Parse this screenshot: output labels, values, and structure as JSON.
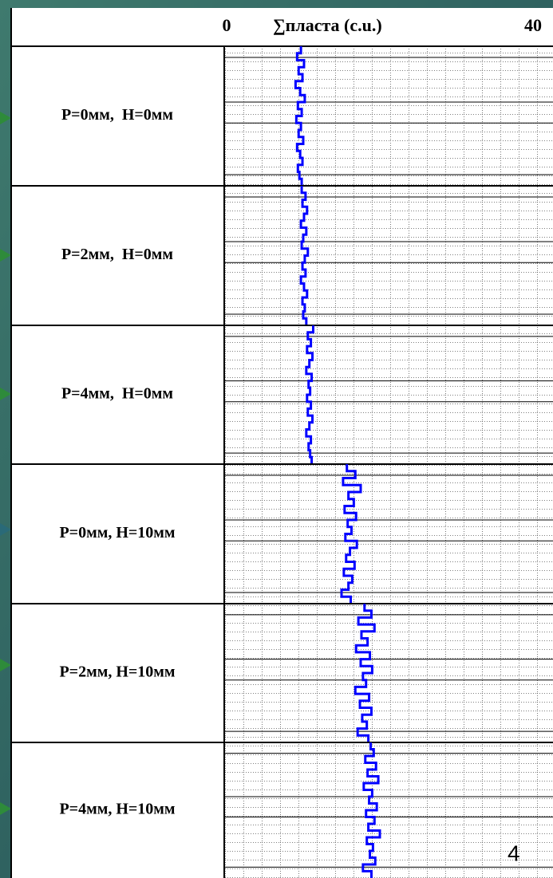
{
  "chart_data": {
    "type": "line",
    "orientation": "vertical",
    "xlabel": "∑пласта (c.u.)",
    "xlim": [
      0,
      40
    ],
    "xticks": [
      0,
      40
    ],
    "color": "#0000ff",
    "series": [
      {
        "name": "P=0мм,  H=0мм",
        "values": [
          9.7,
          9.2,
          10.1,
          9.4,
          9.9,
          9.0,
          9.6,
          10.2,
          9.3,
          9.8,
          9.1,
          9.7,
          9.4,
          10.0,
          9.2,
          9.6,
          9.9,
          9.3,
          9.5,
          9.8
        ]
      },
      {
        "name": "P=2мм,  H=0мм",
        "values": [
          9.8,
          10.3,
          9.9,
          10.5,
          10.1,
          9.7,
          10.4,
          10.0,
          9.8,
          10.6,
          10.2,
          9.9,
          10.3,
          9.7,
          10.1,
          10.5,
          9.9,
          10.2,
          10.0,
          10.4
        ]
      },
      {
        "name": "P=4мм,  H=0мм",
        "values": [
          11.3,
          10.6,
          11.0,
          10.5,
          11.2,
          10.8,
          10.4,
          11.1,
          10.7,
          10.9,
          10.5,
          11.0,
          10.6,
          11.2,
          10.8,
          10.4,
          11.0,
          10.7,
          10.9,
          11.1
        ]
      },
      {
        "name": "P=0мм, H=10мм",
        "values": [
          15.7,
          16.8,
          15.2,
          17.5,
          15.9,
          16.6,
          15.4,
          16.9,
          15.8,
          16.3,
          15.5,
          17.0,
          16.1,
          15.6,
          16.7,
          15.3,
          16.4,
          15.9,
          15.0,
          16.2
        ]
      },
      {
        "name": "P=2мм, H=10мм",
        "values": [
          18.0,
          18.9,
          17.2,
          19.3,
          17.6,
          18.4,
          16.9,
          18.7,
          17.5,
          19.0,
          17.8,
          18.2,
          16.8,
          18.6,
          17.4,
          18.9,
          17.7,
          18.3,
          17.1,
          18.5
        ]
      },
      {
        "name": "P=4мм, H=10мм",
        "values": [
          18.8,
          19.2,
          18.1,
          19.5,
          18.4,
          19.8,
          17.9,
          19.0,
          18.6,
          19.6,
          18.2,
          19.3,
          18.5,
          20.0,
          18.3,
          19.1,
          18.7,
          19.4,
          17.8,
          18.9
        ]
      }
    ],
    "page_number": "4"
  }
}
